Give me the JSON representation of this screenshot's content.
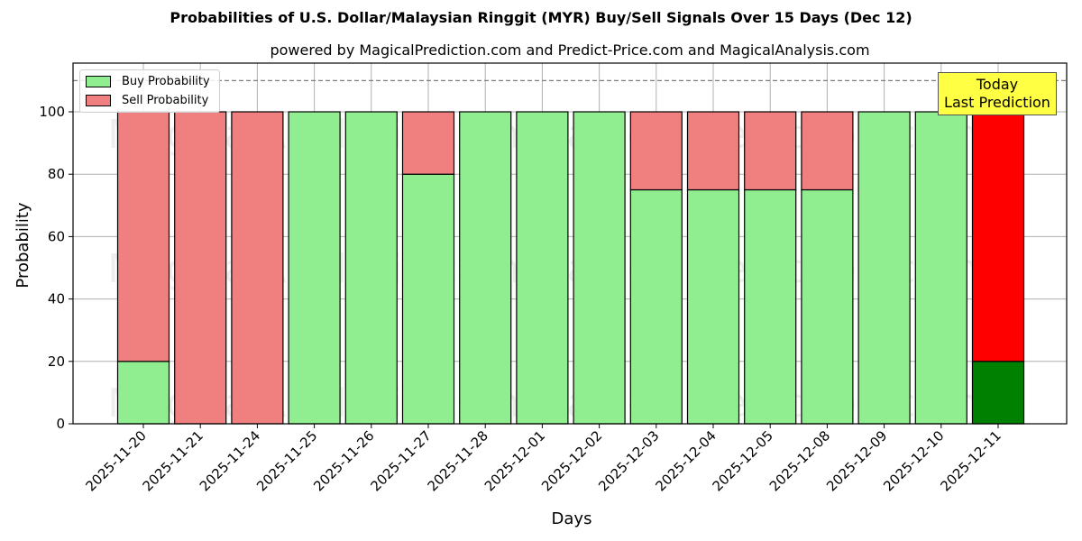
{
  "chart_data": {
    "type": "bar",
    "stacked": true,
    "title": "Probabilities of U.S. Dollar/Malaysian Ringgit (MYR) Buy/Sell Signals Over 15 Days (Dec 12)",
    "subtitle": "powered by MagicalPrediction.com and Predict-Price.com and MagicalAnalysis.com",
    "xlabel": "Days",
    "ylabel": "Probability",
    "ylim": [
      0,
      115
    ],
    "yticks": [
      0,
      20,
      40,
      60,
      80,
      100
    ],
    "grid": true,
    "reference_line": {
      "y": 110,
      "style": "dashed",
      "color": "#808080"
    },
    "legend_position": "upper left",
    "categories": [
      "2025-11-20",
      "2025-11-21",
      "2025-11-24",
      "2025-11-25",
      "2025-11-26",
      "2025-11-27",
      "2025-11-28",
      "2025-12-01",
      "2025-12-02",
      "2025-12-03",
      "2025-12-04",
      "2025-12-05",
      "2025-12-08",
      "2025-12-09",
      "2025-12-10",
      "2025-12-11"
    ],
    "series": [
      {
        "name": "Buy Probability",
        "color": "#90ee90",
        "values": [
          20,
          0,
          0,
          100,
          100,
          80,
          100,
          100,
          100,
          75,
          75,
          75,
          75,
          100,
          100,
          20
        ]
      },
      {
        "name": "Sell Probability",
        "color": "#f08080",
        "values": [
          80,
          100,
          100,
          0,
          0,
          20,
          0,
          0,
          0,
          25,
          25,
          25,
          25,
          0,
          0,
          80
        ]
      }
    ],
    "highlight": {
      "index": 15,
      "buy_color": "#008000",
      "sell_color": "#ff0000",
      "annotation": "Today\nLast Prediction",
      "annotation_bg": "#ffff44"
    },
    "watermarks": [
      "MagicalAnalysis.com",
      "MagicalPrediction.com"
    ]
  },
  "legend": {
    "buy_label": "Buy Probability",
    "sell_label": "Sell Probability"
  },
  "annotation": {
    "line1": "Today",
    "line2": "Last Prediction"
  }
}
